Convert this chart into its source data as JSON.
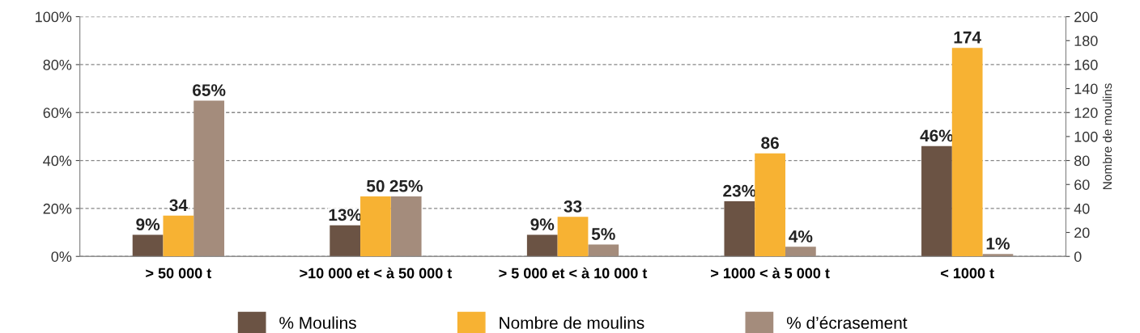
{
  "chart_data": {
    "type": "bar",
    "categories": [
      "> 50 000 t",
      ">10 000 et < à 50 000 t",
      "> 5 000 et < à 10 000 t",
      "> 1000 < à 5 000 t",
      "< 1000 t"
    ],
    "series": [
      {
        "name": "% Moulins",
        "color": "#6b5344",
        "values": [
          9,
          13,
          9,
          23,
          46
        ],
        "value_labels": [
          "9%",
          "13%",
          "9%",
          "23%",
          "46%"
        ]
      },
      {
        "name": "Nombre de moulins",
        "color": "#f7b233",
        "axis": "y2",
        "values": [
          34,
          50,
          33,
          86,
          174
        ],
        "value_labels": [
          "34",
          "50",
          "33",
          "86",
          "174"
        ]
      },
      {
        "name": "% d’écrasement",
        "color": "#a48c7c",
        "values": [
          65,
          25,
          5,
          4,
          1
        ],
        "value_labels": [
          "65%",
          "25%",
          "5%",
          "4%",
          "1%"
        ]
      }
    ],
    "y2label": "Nombre de moulins",
    "ylim": [
      0,
      100
    ],
    "yticks": [
      {
        "value": 0,
        "label": "0%"
      },
      {
        "value": 20,
        "label": "20%"
      },
      {
        "value": 40,
        "label": "40%"
      },
      {
        "value": 60,
        "label": "60%"
      },
      {
        "value": 80,
        "label": "80%"
      },
      {
        "value": 100,
        "label": "100%"
      }
    ],
    "y2lim": [
      0,
      200
    ],
    "y2ticks": [
      0,
      20,
      40,
      60,
      80,
      100,
      120,
      140,
      160,
      180,
      200
    ],
    "grid": "y",
    "legend": "bottom"
  }
}
